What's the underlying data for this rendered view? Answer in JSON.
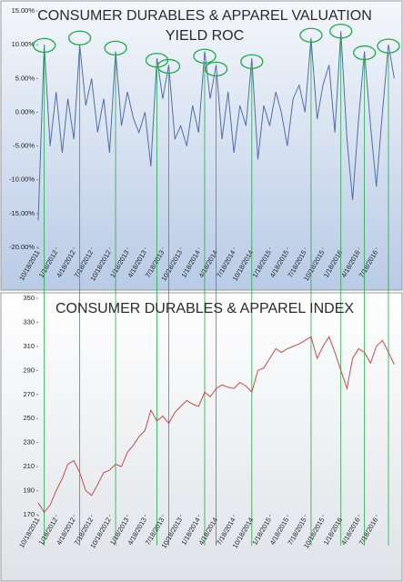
{
  "chart_data": [
    {
      "type": "line",
      "title": [
        "CONSUMER DURABLES & APPAREL VALUATION",
        "YIELD ROC"
      ],
      "x": [
        "2011-10-18",
        "2011-11-18",
        "2011-12-18",
        "2012-01-18",
        "2012-02-18",
        "2012-03-18",
        "2012-04-18",
        "2012-05-18",
        "2012-06-18",
        "2012-07-18",
        "2012-08-18",
        "2012-09-18",
        "2012-10-18",
        "2012-11-18",
        "2012-12-18",
        "2013-01-18",
        "2013-02-18",
        "2013-03-18",
        "2013-04-18",
        "2013-05-18",
        "2013-06-18",
        "2013-07-18",
        "2013-08-18",
        "2013-09-18",
        "2013-10-18",
        "2013-11-18",
        "2013-12-18",
        "2014-01-18",
        "2014-02-18",
        "2014-03-18",
        "2014-04-18",
        "2014-05-18",
        "2014-06-18",
        "2014-07-18",
        "2014-08-18",
        "2014-09-18",
        "2014-10-18",
        "2014-11-18",
        "2014-12-18",
        "2015-01-18",
        "2015-02-18",
        "2015-03-18",
        "2015-04-18",
        "2015-05-18",
        "2015-06-18",
        "2015-07-18",
        "2015-08-18",
        "2015-09-18",
        "2015-10-18",
        "2015-11-18",
        "2015-12-18",
        "2016-01-18",
        "2016-02-18",
        "2016-03-18",
        "2016-04-18",
        "2016-05-18",
        "2016-06-18",
        "2016-07-18",
        "2016-08-18",
        "2016-09-18",
        "2016-10-18"
      ],
      "series": [
        {
          "color": "#4f6fa6",
          "values": [
            -16,
            10,
            -5,
            3,
            -6,
            2,
            -4,
            10,
            1,
            5,
            -3,
            2,
            -6,
            9,
            -2,
            3,
            -1,
            -3,
            0,
            -8,
            8,
            2,
            7,
            -4,
            -2,
            -5,
            1,
            -3,
            9,
            2,
            7,
            -4,
            3,
            -6,
            1,
            -2,
            8,
            -7,
            1,
            -2,
            3,
            0,
            -5,
            2,
            4,
            0,
            11,
            -1,
            4,
            7,
            -3,
            12,
            -4,
            -13,
            -1,
            9,
            -2,
            -11,
            0,
            10,
            5
          ]
        }
      ],
      "xlim": [
        "2011-10-18",
        "2016-10-30"
      ],
      "ylim": [
        -20,
        15
      ],
      "yticks": [
        {
          "value": -20,
          "label": "-20.00%"
        },
        {
          "value": -15,
          "label": "-15.00%"
        },
        {
          "value": -10,
          "label": "-10.00%"
        },
        {
          "value": -5,
          "label": "-5.00%"
        },
        {
          "value": 0,
          "label": "0.00%"
        },
        {
          "value": 5,
          "label": "5.00%"
        },
        {
          "value": 10,
          "label": "10.00%"
        },
        {
          "value": 15,
          "label": "15.00%"
        }
      ],
      "xticks": [
        {
          "value": "2011-10-18",
          "label": "10/18/2011"
        },
        {
          "value": "2012-01-18",
          "label": "1/18/2012"
        },
        {
          "value": "2012-04-18",
          "label": "4/18/2012"
        },
        {
          "value": "2012-07-18",
          "label": "7/18/2012"
        },
        {
          "value": "2012-10-18",
          "label": "10/18/2012"
        },
        {
          "value": "2013-01-18",
          "label": "1/18/2013"
        },
        {
          "value": "2013-04-18",
          "label": "4/18/2013"
        },
        {
          "value": "2013-07-18",
          "label": "7/18/2013"
        },
        {
          "value": "2013-10-18",
          "label": "10/18/2013"
        },
        {
          "value": "2014-01-18",
          "label": "1/18/2014"
        },
        {
          "value": "2014-04-18",
          "label": "4/18/2014"
        },
        {
          "value": "2014-07-18",
          "label": "7/18/2014"
        },
        {
          "value": "2014-10-18",
          "label": "10/18/2014"
        },
        {
          "value": "2015-01-18",
          "label": "1/18/2015"
        },
        {
          "value": "2015-04-18",
          "label": "4/18/2015"
        },
        {
          "value": "2015-07-18",
          "label": "7/18/2015"
        },
        {
          "value": "2015-10-18",
          "label": "10/18/2015"
        },
        {
          "value": "2016-01-18",
          "label": "1/18/2016"
        },
        {
          "value": "2016-04-18",
          "label": "4/18/2016"
        },
        {
          "value": "2016-07-18",
          "label": "7/18/2016"
        }
      ],
      "highlights": [
        {
          "x": "2011-11-18",
          "y": 9.9
        },
        {
          "x": "2012-05-18",
          "y": 11
        },
        {
          "x": "2012-11-18",
          "y": 9.5
        },
        {
          "x": "2013-06-18",
          "y": 7.7
        },
        {
          "x": "2013-08-18",
          "y": 6.8
        },
        {
          "x": "2014-02-18",
          "y": 8.3
        },
        {
          "x": "2014-04-18",
          "y": 6.4
        },
        {
          "x": "2014-10-18",
          "y": 7.5
        },
        {
          "x": "2015-08-18",
          "y": 11.4
        },
        {
          "x": "2016-01-18",
          "y": 12
        },
        {
          "x": "2016-05-18",
          "y": 8.8
        },
        {
          "x": "2016-09-18",
          "y": 9.8
        }
      ],
      "highlight_color": "#22a84a"
    },
    {
      "type": "line",
      "title": [
        "CONSUMER DURABLES & APPAREL INDEX"
      ],
      "x": [
        "2011-10-18",
        "2011-11-18",
        "2011-12-18",
        "2012-01-18",
        "2012-02-18",
        "2012-03-18",
        "2012-04-18",
        "2012-05-18",
        "2012-06-18",
        "2012-07-18",
        "2012-08-18",
        "2012-09-18",
        "2012-10-18",
        "2012-11-18",
        "2012-12-18",
        "2013-01-18",
        "2013-02-18",
        "2013-03-18",
        "2013-04-18",
        "2013-05-18",
        "2013-06-18",
        "2013-07-18",
        "2013-08-18",
        "2013-09-18",
        "2013-10-18",
        "2013-11-18",
        "2013-12-18",
        "2014-01-18",
        "2014-02-18",
        "2014-03-18",
        "2014-04-18",
        "2014-05-18",
        "2014-06-18",
        "2014-07-18",
        "2014-08-18",
        "2014-09-18",
        "2014-10-18",
        "2014-11-18",
        "2014-12-18",
        "2015-01-18",
        "2015-02-18",
        "2015-03-18",
        "2015-04-18",
        "2015-05-18",
        "2015-06-18",
        "2015-07-18",
        "2015-08-18",
        "2015-09-18",
        "2015-10-18",
        "2015-11-18",
        "2015-12-18",
        "2016-01-18",
        "2016-02-18",
        "2016-03-18",
        "2016-04-18",
        "2016-05-18",
        "2016-06-18",
        "2016-07-18",
        "2016-08-18",
        "2016-09-18",
        "2016-10-18"
      ],
      "series": [
        {
          "color": "#c0504d",
          "values": [
            180,
            172,
            178,
            190,
            200,
            212,
            215,
            205,
            190,
            186,
            195,
            205,
            207,
            212,
            210,
            222,
            228,
            235,
            240,
            257,
            248,
            252,
            246,
            255,
            260,
            265,
            262,
            260,
            272,
            268,
            275,
            278,
            276,
            275,
            280,
            277,
            272,
            290,
            292,
            300,
            308,
            305,
            308,
            310,
            312,
            315,
            318,
            300,
            310,
            318,
            305,
            290,
            275,
            300,
            308,
            305,
            296,
            310,
            315,
            305,
            295
          ]
        }
      ],
      "xlim": [
        "2011-10-18",
        "2016-10-30"
      ],
      "ylim": [
        170,
        350
      ],
      "yticks": [
        170,
        190,
        210,
        230,
        250,
        270,
        290,
        310,
        330,
        350
      ],
      "xticks": [
        {
          "value": "2011-10-18",
          "label": "10/18/2011"
        },
        {
          "value": "2012-01-18",
          "label": "1/18/2012"
        },
        {
          "value": "2012-04-18",
          "label": "4/18/2012"
        },
        {
          "value": "2012-07-18",
          "label": "7/18/2012"
        },
        {
          "value": "2012-10-18",
          "label": "10/18/2012"
        },
        {
          "value": "2013-01-18",
          "label": "1/18/2013"
        },
        {
          "value": "2013-04-18",
          "label": "4/18/2013"
        },
        {
          "value": "2013-07-18",
          "label": "7/18/2013"
        },
        {
          "value": "2013-10-18",
          "label": "10/18/2013"
        },
        {
          "value": "2014-01-18",
          "label": "1/18/2014"
        },
        {
          "value": "2014-04-18",
          "label": "4/18/2014"
        },
        {
          "value": "2014-07-18",
          "label": "7/18/2014"
        },
        {
          "value": "2014-10-18",
          "label": "10/18/2014"
        },
        {
          "value": "2015-01-18",
          "label": "1/18/2015"
        },
        {
          "value": "2015-04-18",
          "label": "4/18/2015"
        },
        {
          "value": "2015-07-18",
          "label": "7/18/2015"
        },
        {
          "value": "2015-10-18",
          "label": "10/18/2015"
        },
        {
          "value": "2016-01-18",
          "label": "1/18/2016"
        },
        {
          "value": "2016-04-18",
          "label": "4/18/2016"
        },
        {
          "value": "2016-07-18",
          "label": "7/18/2016"
        }
      ]
    }
  ]
}
